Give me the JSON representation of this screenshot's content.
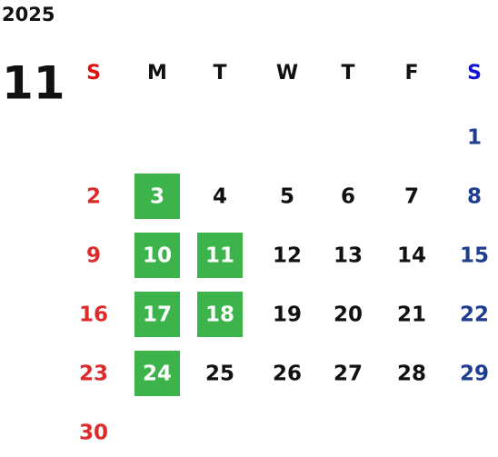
{
  "calendar": {
    "year": "2025",
    "month": "11",
    "weekdays": [
      "S",
      "M",
      "T",
      "W",
      "T",
      "F",
      "S"
    ],
    "weeks": [
      [
        null,
        null,
        null,
        null,
        null,
        null,
        1
      ],
      [
        2,
        {
          "day": 3,
          "highlighted": true
        },
        4,
        5,
        6,
        7,
        8
      ],
      [
        9,
        {
          "day": 10,
          "highlighted": true
        },
        {
          "day": 11,
          "highlighted": true
        },
        12,
        13,
        14,
        15
      ],
      [
        16,
        {
          "day": 17,
          "highlighted": true
        },
        {
          "day": 18,
          "highlighted": true
        },
        19,
        20,
        21,
        22
      ],
      [
        23,
        {
          "day": 24,
          "highlighted": true
        },
        25,
        26,
        27,
        28,
        29
      ],
      [
        30,
        null,
        null,
        null,
        null,
        null,
        null
      ]
    ],
    "sunday_header_color": "#e01010",
    "saturday_header_color": "#1515d0",
    "sunday_color": "#dd2a2a",
    "saturday_color": "#1e3d8f",
    "weekday_color": "#111111",
    "highlight_color": "#3cb44b",
    "highlight_text_color": "#ffffff"
  }
}
